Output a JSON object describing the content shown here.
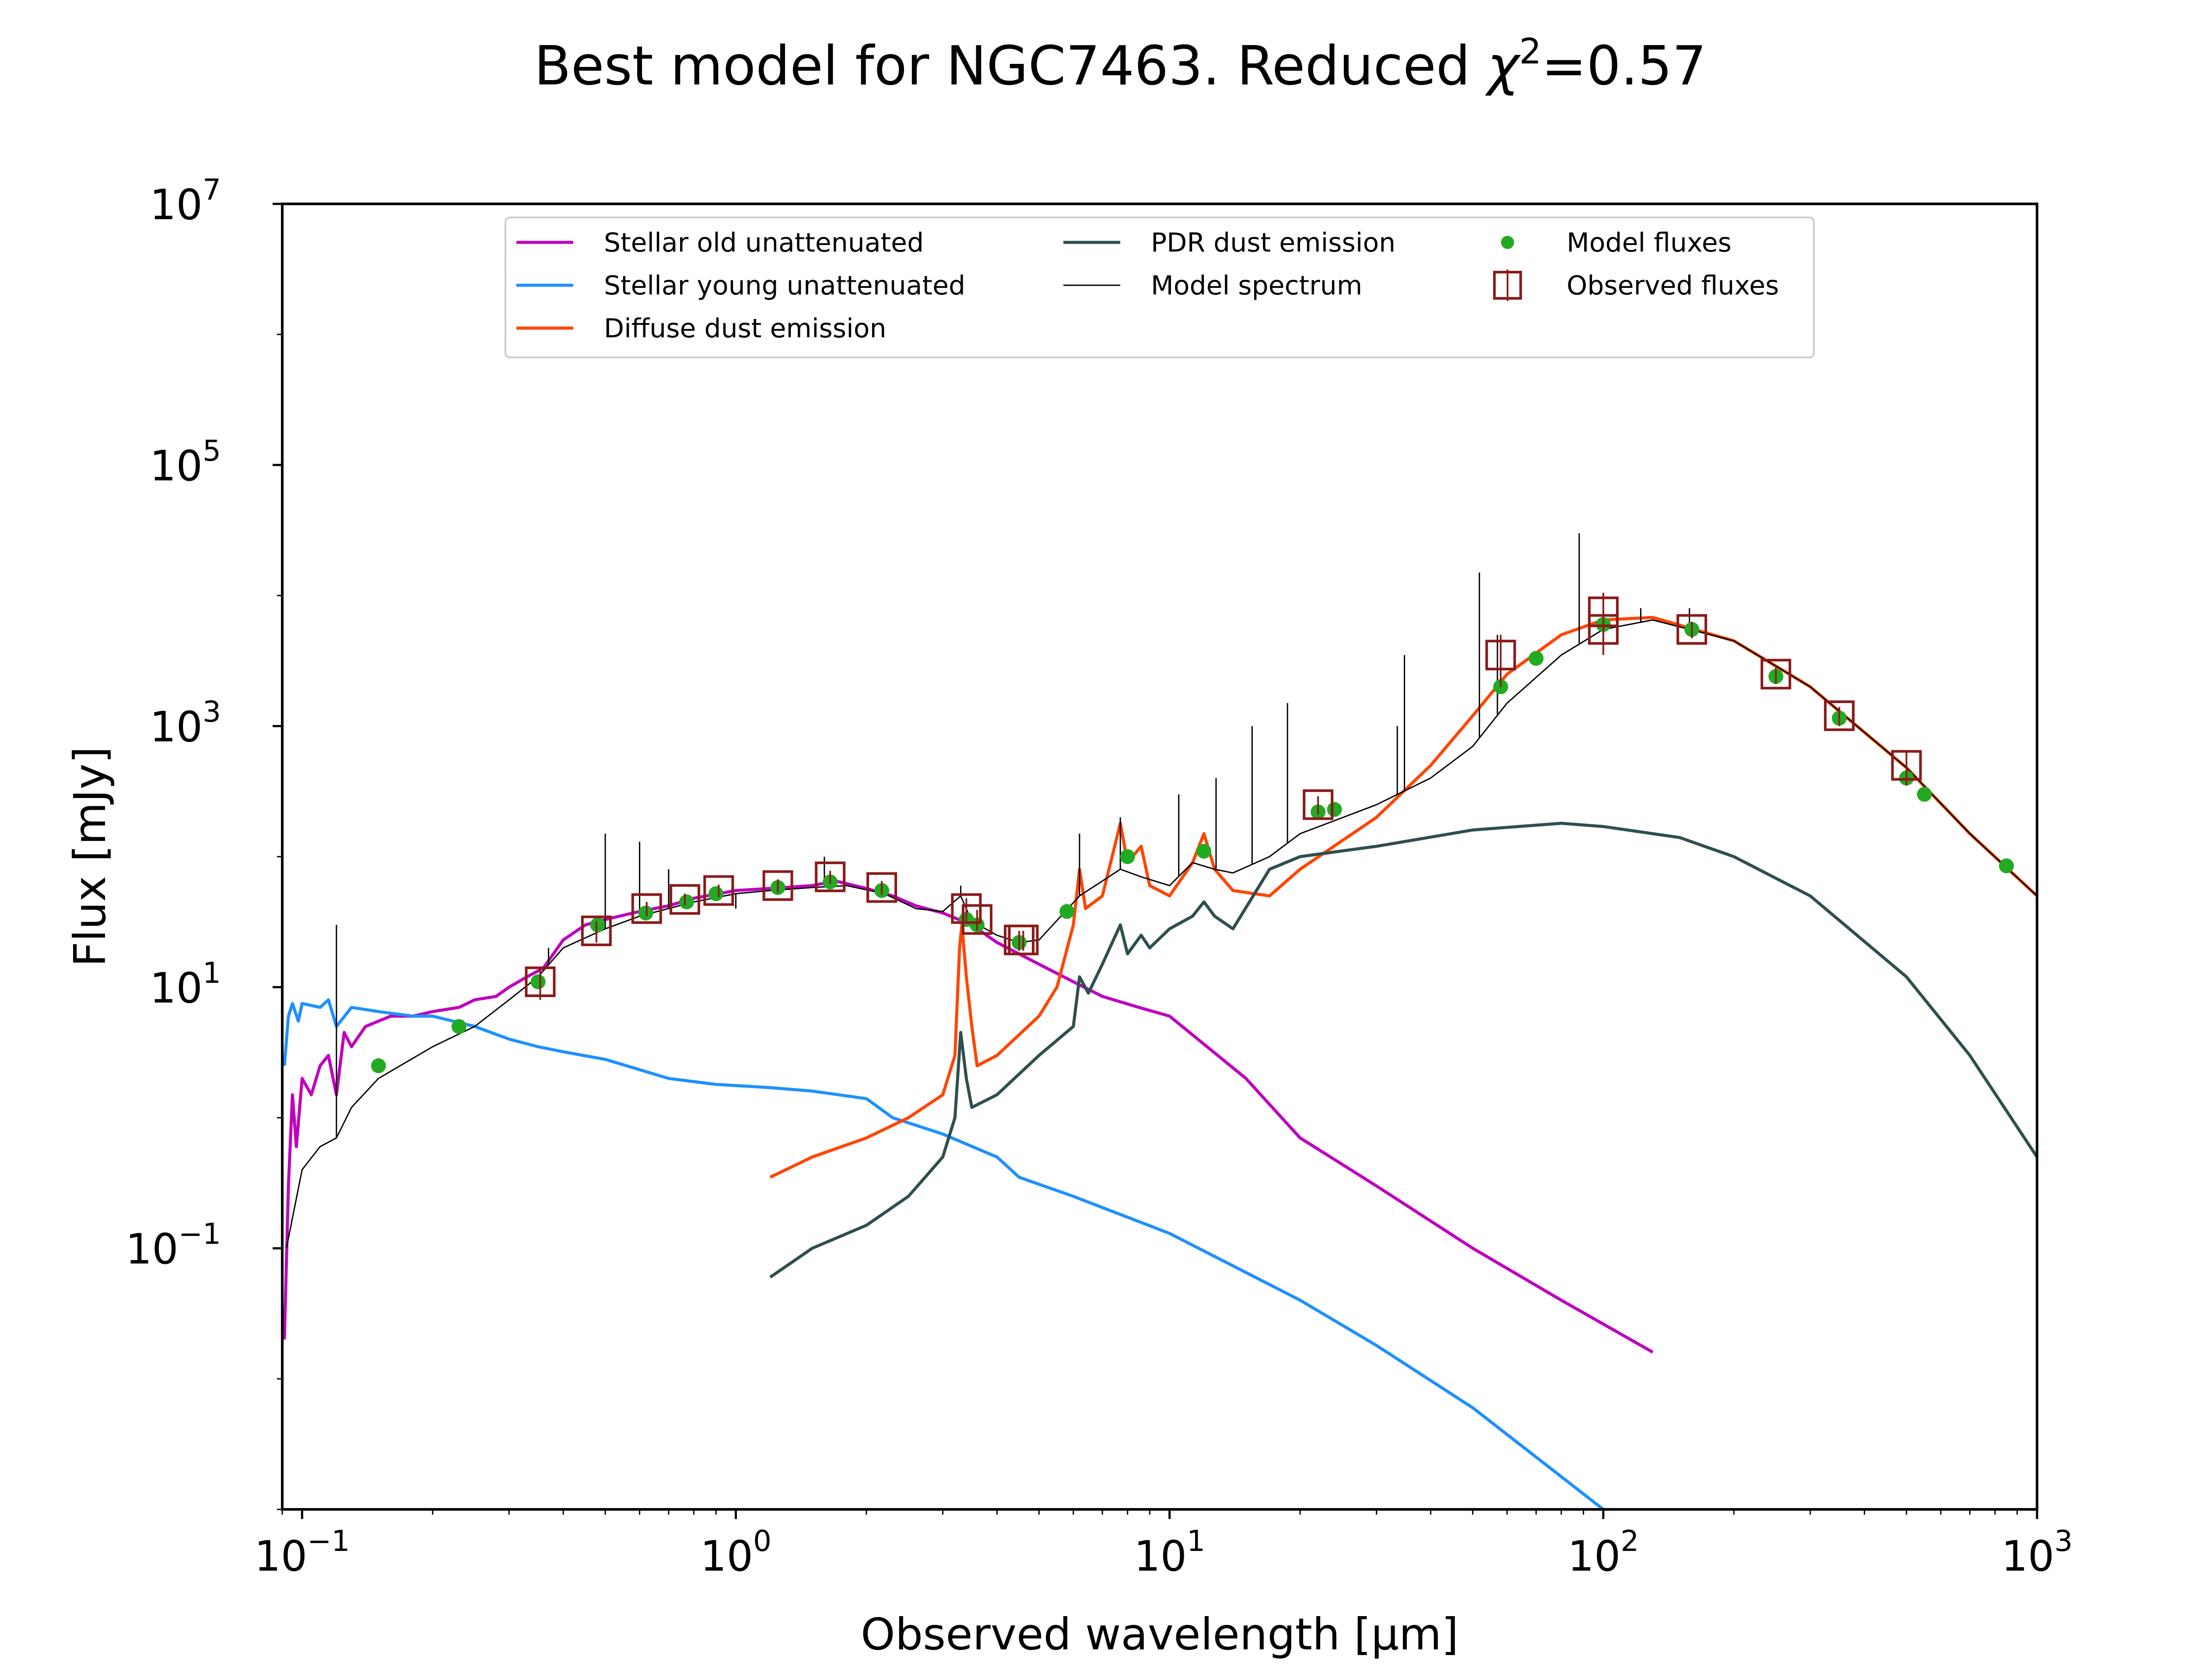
{
  "chart_data": {
    "type": "line",
    "title_prefix": "Best model for NGC7463. Reduced ",
    "title_chi": "χ",
    "title_chi_power": "2",
    "title_value": "=0.57",
    "xlabel": "Observed wavelength [μm]",
    "ylabel": "Flux [mJy]",
    "xscale": "log",
    "yscale": "log",
    "xlim": [
      0.09,
      1000
    ],
    "ylim": [
      0.001,
      10000000
    ],
    "grid": false,
    "legend_position": "top-center",
    "x_ticks": [
      {
        "base": "10",
        "exp": "−1",
        "value": 0.1
      },
      {
        "base": "10",
        "exp": "0",
        "value": 1
      },
      {
        "base": "10",
        "exp": "1",
        "value": 10
      },
      {
        "base": "10",
        "exp": "2",
        "value": 100
      },
      {
        "base": "10",
        "exp": "3",
        "value": 1000
      }
    ],
    "y_ticks": [
      {
        "base": "10",
        "exp": "−1",
        "value": 0.1
      },
      {
        "base": "10",
        "exp": "1",
        "value": 10
      },
      {
        "base": "10",
        "exp": "3",
        "value": 1000
      },
      {
        "base": "10",
        "exp": "5",
        "value": 100000
      },
      {
        "base": "10",
        "exp": "7",
        "value": 10000000
      }
    ],
    "series": [
      {
        "name": "Stellar old unattenuated",
        "color": "#BF00BF",
        "points": [
          [
            0.091,
            0.02
          ],
          [
            0.093,
            0.3
          ],
          [
            0.095,
            1.5
          ],
          [
            0.097,
            0.6
          ],
          [
            0.1,
            2.0
          ],
          [
            0.105,
            1.5
          ],
          [
            0.11,
            2.5
          ],
          [
            0.115,
            3.0
          ],
          [
            0.12,
            1.5
          ],
          [
            0.125,
            4.5
          ],
          [
            0.13,
            3.5
          ],
          [
            0.14,
            5.0
          ],
          [
            0.16,
            6.0
          ],
          [
            0.18,
            6.0
          ],
          [
            0.2,
            6.5
          ],
          [
            0.23,
            7.0
          ],
          [
            0.25,
            8.0
          ],
          [
            0.28,
            8.5
          ],
          [
            0.3,
            10
          ],
          [
            0.33,
            12
          ],
          [
            0.36,
            14
          ],
          [
            0.4,
            23
          ],
          [
            0.45,
            30
          ],
          [
            0.5,
            33
          ],
          [
            0.6,
            38
          ],
          [
            0.7,
            42
          ],
          [
            0.8,
            48
          ],
          [
            1.0,
            55
          ],
          [
            1.2,
            57
          ],
          [
            1.5,
            60
          ],
          [
            1.7,
            65
          ],
          [
            2.0,
            57
          ],
          [
            2.3,
            50
          ],
          [
            2.6,
            42
          ],
          [
            3.0,
            37
          ],
          [
            3.5,
            30
          ],
          [
            4.0,
            22
          ],
          [
            5.0,
            15
          ],
          [
            6.0,
            11
          ],
          [
            7.0,
            8.5
          ],
          [
            8.5,
            7.0
          ],
          [
            10,
            6.0
          ],
          [
            15,
            2.0
          ],
          [
            20,
            0.7
          ],
          [
            30,
            0.3
          ],
          [
            50,
            0.1
          ],
          [
            80,
            0.04
          ],
          [
            130,
            0.016
          ]
        ]
      },
      {
        "name": "Stellar young unattenuated",
        "color": "#1E90FF",
        "points": [
          [
            0.091,
            2.5
          ],
          [
            0.093,
            6.0
          ],
          [
            0.095,
            7.5
          ],
          [
            0.098,
            5.5
          ],
          [
            0.1,
            7.5
          ],
          [
            0.11,
            7.0
          ],
          [
            0.115,
            8.0
          ],
          [
            0.12,
            5.0
          ],
          [
            0.13,
            7.0
          ],
          [
            0.15,
            6.5
          ],
          [
            0.18,
            6.0
          ],
          [
            0.2,
            6.0
          ],
          [
            0.25,
            5.0
          ],
          [
            0.3,
            4.0
          ],
          [
            0.35,
            3.5
          ],
          [
            0.4,
            3.2
          ],
          [
            0.5,
            2.8
          ],
          [
            0.7,
            2.0
          ],
          [
            0.9,
            1.8
          ],
          [
            1.2,
            1.7
          ],
          [
            1.5,
            1.6
          ],
          [
            2.0,
            1.4
          ],
          [
            2.3,
            1.0
          ],
          [
            3.0,
            0.75
          ],
          [
            4.0,
            0.5
          ],
          [
            4.5,
            0.35
          ],
          [
            6.0,
            0.25
          ],
          [
            10,
            0.13
          ],
          [
            20,
            0.04
          ],
          [
            30,
            0.018
          ],
          [
            50,
            0.006
          ],
          [
            100,
            0.001
          ]
        ]
      },
      {
        "name": "Diffuse dust emission",
        "color": "#FF4500",
        "points": [
          [
            1.2,
            0.35
          ],
          [
            1.5,
            0.5
          ],
          [
            2.0,
            0.7
          ],
          [
            2.5,
            1.0
          ],
          [
            3.0,
            1.5
          ],
          [
            3.2,
            3.0
          ],
          [
            3.28,
            20
          ],
          [
            3.32,
            30
          ],
          [
            3.4,
            12
          ],
          [
            3.5,
            5
          ],
          [
            3.6,
            2.5
          ],
          [
            4.0,
            3.0
          ],
          [
            5.0,
            6.0
          ],
          [
            5.5,
            10
          ],
          [
            6.0,
            30
          ],
          [
            6.2,
            80
          ],
          [
            6.4,
            40
          ],
          [
            7.0,
            50
          ],
          [
            7.7,
            180
          ],
          [
            8.0,
            90
          ],
          [
            8.6,
            120
          ],
          [
            9.0,
            60
          ],
          [
            10,
            50
          ],
          [
            11.3,
            90
          ],
          [
            12,
            150
          ],
          [
            12.7,
            80
          ],
          [
            14,
            55
          ],
          [
            17,
            50
          ],
          [
            20,
            80
          ],
          [
            30,
            200
          ],
          [
            40,
            500
          ],
          [
            50,
            1200
          ],
          [
            60,
            2500
          ],
          [
            80,
            5000
          ],
          [
            100,
            6500
          ],
          [
            130,
            6800
          ],
          [
            200,
            4500
          ],
          [
            300,
            2000
          ],
          [
            500,
            480
          ],
          [
            700,
            150
          ],
          [
            1000,
            50
          ]
        ]
      },
      {
        "name": "PDR dust emission",
        "color": "#2F4F4F",
        "points": [
          [
            1.2,
            0.06
          ],
          [
            1.5,
            0.1
          ],
          [
            2.0,
            0.15
          ],
          [
            2.5,
            0.25
          ],
          [
            3.0,
            0.5
          ],
          [
            3.2,
            1.0
          ],
          [
            3.3,
            4.5
          ],
          [
            3.4,
            2.0
          ],
          [
            3.5,
            1.2
          ],
          [
            4.0,
            1.5
          ],
          [
            5.0,
            3.0
          ],
          [
            6.0,
            5.0
          ],
          [
            6.2,
            12
          ],
          [
            6.5,
            9
          ],
          [
            7.0,
            15
          ],
          [
            7.7,
            30
          ],
          [
            8.0,
            18
          ],
          [
            8.6,
            25
          ],
          [
            9.0,
            20
          ],
          [
            10,
            28
          ],
          [
            11.3,
            35
          ],
          [
            12,
            45
          ],
          [
            12.7,
            35
          ],
          [
            14,
            28
          ],
          [
            17,
            80
          ],
          [
            20,
            100
          ],
          [
            30,
            120
          ],
          [
            50,
            160
          ],
          [
            80,
            180
          ],
          [
            100,
            170
          ],
          [
            150,
            140
          ],
          [
            200,
            100
          ],
          [
            300,
            50
          ],
          [
            500,
            12
          ],
          [
            700,
            3.0
          ],
          [
            1000,
            0.5
          ]
        ]
      },
      {
        "name": "Model spectrum",
        "color": "#000000",
        "points": [
          [
            0.092,
            0.1
          ],
          [
            0.1,
            0.4
          ],
          [
            0.11,
            0.6
          ],
          [
            0.12,
            0.7
          ],
          [
            0.13,
            1.2
          ],
          [
            0.15,
            2.0
          ],
          [
            0.2,
            3.5
          ],
          [
            0.25,
            5.0
          ],
          [
            0.3,
            8.0
          ],
          [
            0.35,
            12
          ],
          [
            0.4,
            20
          ],
          [
            0.5,
            28
          ],
          [
            0.6,
            35
          ],
          [
            0.8,
            45
          ],
          [
            1.0,
            52
          ],
          [
            1.2,
            55
          ],
          [
            1.5,
            58
          ],
          [
            1.8,
            60
          ],
          [
            2.2,
            52
          ],
          [
            2.6,
            40
          ],
          [
            3.0,
            38
          ],
          [
            3.3,
            50
          ],
          [
            3.5,
            32
          ],
          [
            4.0,
            25
          ],
          [
            4.5,
            22
          ],
          [
            5.0,
            23
          ],
          [
            6.2,
            50
          ],
          [
            7.7,
            80
          ],
          [
            8.6,
            70
          ],
          [
            10,
            60
          ],
          [
            11.3,
            90
          ],
          [
            12.7,
            80
          ],
          [
            14,
            75
          ],
          [
            17,
            100
          ],
          [
            20,
            150
          ],
          [
            30,
            250
          ],
          [
            40,
            400
          ],
          [
            50,
            700
          ],
          [
            60,
            1500
          ],
          [
            80,
            3500
          ],
          [
            100,
            5500
          ],
          [
            130,
            6500
          ],
          [
            200,
            4500
          ],
          [
            300,
            2000
          ],
          [
            500,
            480
          ],
          [
            700,
            150
          ],
          [
            1000,
            50
          ]
        ]
      }
    ],
    "emission_lines": [
      [
        0.12,
        30
      ],
      [
        0.37,
        20
      ],
      [
        0.5,
        150
      ],
      [
        0.6,
        130
      ],
      [
        0.7,
        80
      ],
      [
        1.0,
        40
      ],
      [
        1.6,
        100
      ],
      [
        3.3,
        60
      ],
      [
        6.2,
        150
      ],
      [
        7.7,
        200
      ],
      [
        10.5,
        300
      ],
      [
        12.8,
        400
      ],
      [
        15.5,
        1000
      ],
      [
        18.7,
        1500
      ],
      [
        33.5,
        1000
      ],
      [
        34.8,
        3500
      ],
      [
        51.8,
        15000
      ],
      [
        57,
        5000
      ],
      [
        88,
        30000
      ],
      [
        122,
        8000
      ],
      [
        158,
        8000
      ]
    ],
    "model_fluxes": {
      "name": "Model fluxes",
      "color": "#22AA22",
      "points": [
        [
          0.15,
          2.5
        ],
        [
          0.23,
          5.0
        ],
        [
          0.35,
          11
        ],
        [
          0.48,
          30
        ],
        [
          0.62,
          37
        ],
        [
          0.77,
          45
        ],
        [
          0.9,
          52
        ],
        [
          1.25,
          58
        ],
        [
          1.65,
          64
        ],
        [
          2.17,
          55
        ],
        [
          3.4,
          33
        ],
        [
          3.6,
          30
        ],
        [
          4.5,
          22
        ],
        [
          5.8,
          38
        ],
        [
          8.0,
          100
        ],
        [
          12,
          110
        ],
        [
          22,
          220
        ],
        [
          24,
          230
        ],
        [
          58,
          2000
        ],
        [
          70,
          3300
        ],
        [
          100,
          6000
        ],
        [
          160,
          5500
        ],
        [
          250,
          2400
        ],
        [
          350,
          1150
        ],
        [
          500,
          400
        ],
        [
          550,
          300
        ],
        [
          850,
          85
        ]
      ]
    },
    "observed_fluxes": {
      "name": "Observed fluxes",
      "color": "#8B1A1A",
      "points": [
        [
          0.354,
          11,
          3
        ],
        [
          0.477,
          27,
          5
        ],
        [
          0.623,
          40,
          5
        ],
        [
          0.763,
          47,
          5
        ],
        [
          0.913,
          55,
          6
        ],
        [
          1.25,
          60,
          7
        ],
        [
          1.65,
          70,
          8
        ],
        [
          2.17,
          58,
          7
        ],
        [
          3.4,
          40,
          8
        ],
        [
          3.6,
          33,
          6
        ],
        [
          4.5,
          23,
          4
        ],
        [
          4.6,
          23,
          4
        ],
        [
          22,
          250,
          40
        ],
        [
          58,
          3500,
          1500
        ],
        [
          100,
          7500,
          3000
        ],
        [
          100,
          5500,
          2000
        ],
        [
          160,
          5500,
          800
        ],
        [
          250,
          2500,
          400
        ],
        [
          350,
          1200,
          200
        ],
        [
          500,
          500,
          150
        ]
      ]
    }
  }
}
